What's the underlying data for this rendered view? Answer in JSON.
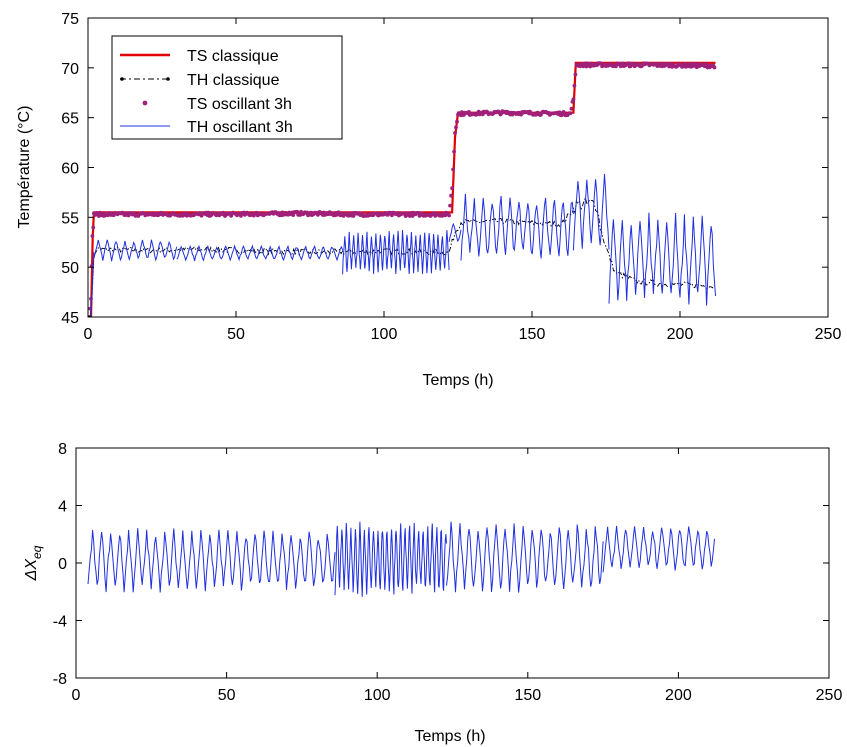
{
  "chart_data": [
    {
      "type": "line",
      "title": "",
      "xlabel": "Temps (h)",
      "ylabel": "Température (°C)",
      "xlim": [
        0,
        250
      ],
      "ylim": [
        45,
        75
      ],
      "xticks": [
        0,
        50,
        100,
        150,
        200,
        250
      ],
      "yticks": [
        45,
        50,
        55,
        60,
        65,
        70,
        75
      ],
      "xtick_labels": [
        "0",
        "50",
        "100",
        "150",
        "200",
        "250"
      ],
      "ytick_labels": [
        "45",
        "50",
        "55",
        "60",
        "65",
        "70",
        "75"
      ],
      "grid": false,
      "legend_position": "top-left",
      "series": [
        {
          "name": "TS classique",
          "color": "#e00000",
          "style": "solid-thick",
          "x": [
            0,
            1,
            1.6,
            2,
            3,
            123,
            124,
            125,
            164,
            164.8,
            212
          ],
          "y": [
            45,
            45,
            53,
            55.5,
            55.5,
            55.5,
            63,
            65.5,
            65.5,
            70.5,
            70.5
          ]
        },
        {
          "name": "TH classique",
          "color": "#000000",
          "style": "dash-dot-marker",
          "x": [
            0,
            1,
            2,
            3,
            20,
            40,
            60,
            80,
            100,
            122,
            124,
            126,
            140,
            160,
            165,
            170,
            172,
            173,
            175,
            178,
            185,
            195,
            205,
            212
          ],
          "y": [
            45,
            45,
            51,
            51.8,
            51.7,
            51.8,
            51.6,
            51.5,
            51.6,
            51.5,
            53.5,
            54.5,
            54.6,
            54.3,
            56.2,
            56.4,
            56.2,
            54,
            52,
            49.5,
            48.6,
            48.3,
            48.2,
            48.1
          ]
        },
        {
          "name": "TS oscillant 3h",
          "color": "#a0207a",
          "style": "dots",
          "x": [
            0.5,
            1,
            1.5,
            2,
            10,
            30,
            50,
            70,
            90,
            110,
            122,
            123,
            124,
            125,
            140,
            163,
            164,
            165,
            190,
            212
          ],
          "y": [
            45,
            47,
            53,
            55.3,
            55.3,
            55.3,
            55.3,
            55.4,
            55.3,
            55.3,
            55.3,
            58,
            63.5,
            65.4,
            65.5,
            65.4,
            67,
            70.3,
            70.3,
            70.2
          ]
        },
        {
          "name": "TH oscillant 3h",
          "color": "#2030e0",
          "style": "thin-oscillating",
          "x": [
            0,
            1,
            2,
            212
          ],
          "y": [
            45,
            45,
            51.5,
            48
          ],
          "segments": [
            {
              "x": [
                2,
                30
              ],
              "mid": 51.7,
              "amplitude": 1.0,
              "period_h": 3
            },
            {
              "x": [
                30,
                86
              ],
              "mid": 51.4,
              "amplitude": 0.7,
              "period_h": 3
            },
            {
              "x": [
                86,
                122
              ],
              "mid": 51.5,
              "amplitude": 1.9,
              "period_h": 1.5
            },
            {
              "x": [
                122,
                126
              ],
              "mid": 53.5,
              "amplitude": 1.0,
              "period_h": 3
            },
            {
              "x": [
                126,
                164
              ],
              "mid": 54,
              "amplitude": 3.0,
              "period_h": 3
            },
            {
              "x": [
                164,
                176
              ],
              "mid": 55.5,
              "amplitude": 3.5,
              "period_h": 3
            },
            {
              "x": [
                176,
                212
              ],
              "mid": 50.8,
              "amplitude": 4.0,
              "period_h": 3
            }
          ]
        }
      ]
    },
    {
      "type": "line",
      "title": "",
      "xlabel": "Temps (h)",
      "ylabel": "ΔX",
      "ylabel_subscript": "eq",
      "xlim": [
        0,
        250
      ],
      "ylim": [
        -8,
        8
      ],
      "xticks": [
        0,
        50,
        100,
        150,
        200,
        250
      ],
      "yticks": [
        -8,
        -4,
        0,
        4,
        8
      ],
      "xtick_labels": [
        "0",
        "50",
        "100",
        "150",
        "200",
        "250"
      ],
      "ytick_labels": [
        "-8",
        "-4",
        "0",
        "4",
        "8"
      ],
      "grid": false,
      "series": [
        {
          "color": "#2030e0",
          "style": "thin-oscillating",
          "segments": [
            {
              "x": [
                4,
                86
              ],
              "mid": 0.2,
              "amplitude": 2.0,
              "period_h": 3
            },
            {
              "x": [
                86,
                123
              ],
              "mid": 0.3,
              "amplitude": 2.4,
              "period_h": 1.5
            },
            {
              "x": [
                123,
                175
              ],
              "mid": 0.4,
              "amplitude": 2.3,
              "period_h": 3
            },
            {
              "x": [
                175,
                212
              ],
              "mid": 1.0,
              "amplitude": 1.5,
              "period_h": 3
            }
          ]
        }
      ]
    }
  ]
}
